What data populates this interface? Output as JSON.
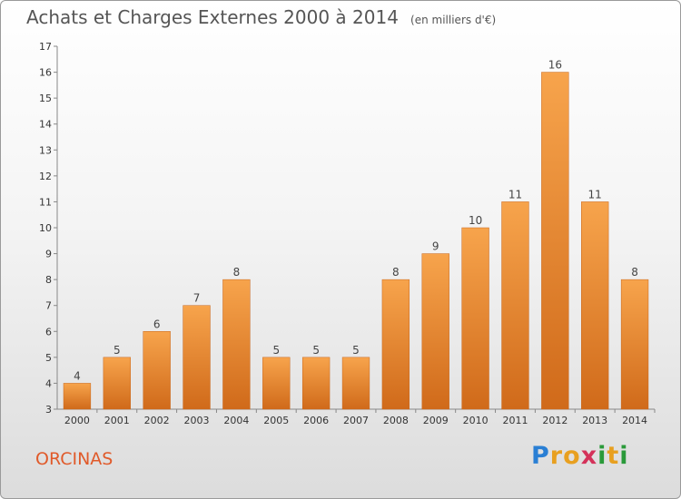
{
  "header": {
    "title": "Achats et Charges Externes 2000 à 2014",
    "subtitle": "(en milliers d'€)"
  },
  "footer": {
    "town": "ORCINAS",
    "logo": {
      "letters": [
        "P",
        "r",
        "o",
        "x",
        "i",
        "t",
        "i"
      ],
      "colors": [
        "#2a7fd4",
        "#e8a020",
        "#e8a020",
        "#d4325a",
        "#2a9a3a",
        "#e8a020",
        "#2a9a3a"
      ]
    }
  },
  "chart_data": {
    "type": "bar",
    "title": "Achats et Charges Externes 2000 à 2014",
    "subtitle": "(en milliers d'€)",
    "categories": [
      "2000",
      "2001",
      "2002",
      "2003",
      "2004",
      "2005",
      "2006",
      "2007",
      "2008",
      "2009",
      "2010",
      "2011",
      "2012",
      "2013",
      "2014"
    ],
    "values": [
      4,
      5,
      6,
      7,
      8,
      5,
      5,
      5,
      8,
      9,
      10,
      11,
      16,
      11,
      8
    ],
    "ylim": [
      3,
      17
    ],
    "yticks": [
      3,
      4,
      5,
      6,
      7,
      8,
      9,
      10,
      11,
      12,
      13,
      14,
      15,
      16,
      17
    ],
    "grid": false,
    "bar_color_top": "#f7a44c",
    "bar_color_bottom": "#d06a1a"
  }
}
